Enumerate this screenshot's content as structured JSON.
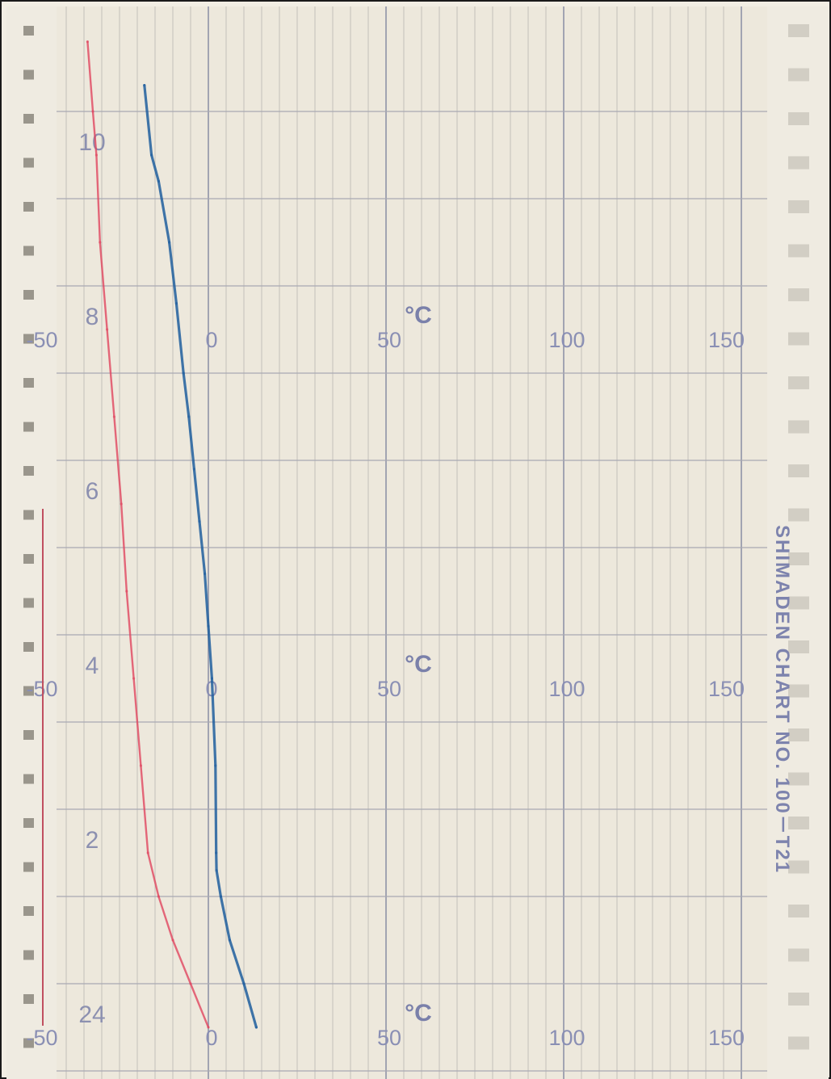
{
  "chart_data": {
    "type": "line",
    "title": "",
    "xlabel": "°C",
    "xlim": [
      -50,
      150
    ],
    "x_ticks": [
      "-50",
      "0",
      "50",
      "100",
      "150"
    ],
    "unit_label": "°C",
    "hour_labels": [
      "10",
      "8",
      "6",
      "4",
      "2",
      "24"
    ],
    "y_axis": "hours",
    "ylim": [
      24,
      35
    ],
    "grid": true,
    "series": [
      {
        "color": "#1f5e9e",
        "points": [
          {
            "x": -18.0,
            "y": 34.8
          },
          {
            "x": -16.0,
            "y": 34.0
          },
          {
            "x": -14.0,
            "y": 33.7
          },
          {
            "x": -11.0,
            "y": 33.0
          },
          {
            "x": -9.0,
            "y": 32.3
          },
          {
            "x": -7.0,
            "y": 31.5
          },
          {
            "x": -5.5,
            "y": 31.0
          },
          {
            "x": -4.0,
            "y": 30.4
          },
          {
            "x": -2.5,
            "y": 29.8
          },
          {
            "x": -1.0,
            "y": 29.2
          },
          {
            "x": 0.0,
            "y": 28.6
          },
          {
            "x": 1.0,
            "y": 28.0
          },
          {
            "x": 2.0,
            "y": 27.0
          },
          {
            "x": 2.2,
            "y": 26.0
          },
          {
            "x": 2.3,
            "y": 25.8
          },
          {
            "x": 3.5,
            "y": 25.5
          },
          {
            "x": 6.0,
            "y": 25.0
          },
          {
            "x": 10.0,
            "y": 24.5
          },
          {
            "x": 13.5,
            "y": 24.0
          }
        ]
      },
      {
        "color": "#e0455f",
        "points": [
          {
            "x": -34.0,
            "y": 35.3
          },
          {
            "x": -32.5,
            "y": 34.5
          },
          {
            "x": -31.5,
            "y": 34.0
          },
          {
            "x": -30.5,
            "y": 33.0
          },
          {
            "x": -28.5,
            "y": 32.0
          },
          {
            "x": -26.5,
            "y": 31.0
          },
          {
            "x": -24.5,
            "y": 30.0
          },
          {
            "x": -23.0,
            "y": 29.0
          },
          {
            "x": -21.0,
            "y": 28.0
          },
          {
            "x": -19.0,
            "y": 27.0
          },
          {
            "x": -17.0,
            "y": 26.0
          },
          {
            "x": -14.0,
            "y": 25.5
          },
          {
            "x": -10.0,
            "y": 25.0
          },
          {
            "x": -5.0,
            "y": 24.5
          },
          {
            "x": 0.0,
            "y": 24.0
          }
        ]
      }
    ]
  },
  "right_margin_text": "SHIMADEN CHART NO. 100－T21"
}
